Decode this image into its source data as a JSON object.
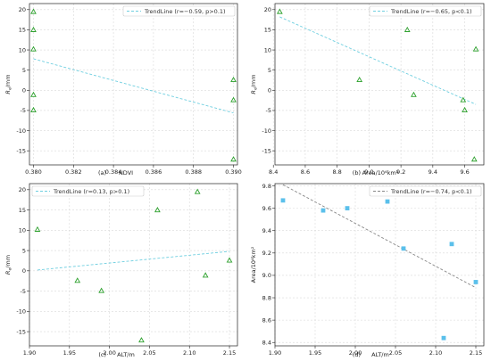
{
  "chart_data": [
    {
      "panel": "(a)",
      "type": "scatter",
      "xlabel": "NDVI",
      "ylabel": "R_e/mm",
      "xlim": [
        0.3798,
        0.3902
      ],
      "ylim": [
        -18.5,
        21.5
      ],
      "xticks": [
        "0.380",
        "0.382",
        "0.384",
        "0.386",
        "0.388",
        "0.390"
      ],
      "yticks": [
        "20",
        "15",
        "10",
        "5",
        "0",
        "-5",
        "-10",
        "-15"
      ],
      "xtick_values": [
        0.38,
        0.382,
        0.384,
        0.386,
        0.388,
        0.39
      ],
      "ytick_values": [
        20,
        15,
        10,
        5,
        0,
        -5,
        -10,
        -15
      ],
      "marker": "triangle-open",
      "marker_color": "#2ca02c",
      "points": [
        {
          "x": 0.38,
          "y": 19.5
        },
        {
          "x": 0.38,
          "y": 15.0
        },
        {
          "x": 0.38,
          "y": 10.2
        },
        {
          "x": 0.38,
          "y": -1.1
        },
        {
          "x": 0.38,
          "y": -4.9
        },
        {
          "x": 0.39,
          "y": 2.6
        },
        {
          "x": 0.39,
          "y": -2.4
        },
        {
          "x": 0.39,
          "y": -17.1
        }
      ],
      "trendline": {
        "x": [
          0.38,
          0.39
        ],
        "y": [
          7.8,
          -5.6
        ],
        "color": "#6fcfe0",
        "style": "dashed"
      },
      "legend": {
        "label": "TrendLine (r=−0.59, p>0.1)",
        "placement": "top-right"
      },
      "grid": true
    },
    {
      "panel": "(b)",
      "type": "scatter",
      "xlabel": "Area/10⁴km²",
      "ylabel": "R_e/mm",
      "xlim": [
        8.41,
        9.72
      ],
      "ylim": [
        -18.5,
        21.5
      ],
      "xticks": [
        "8.4",
        "8.6",
        "8.8",
        "9.0",
        "9.2",
        "9.4",
        "9.6"
      ],
      "yticks": [
        "20",
        "15",
        "10",
        "5",
        "0",
        "-5",
        "-10",
        "-15"
      ],
      "xtick_values": [
        8.4,
        8.6,
        8.8,
        9.0,
        9.2,
        9.4,
        9.6
      ],
      "ytick_values": [
        20,
        15,
        10,
        5,
        0,
        -5,
        -10,
        -15
      ],
      "marker": "triangle-open",
      "marker_color": "#2ca02c",
      "points": [
        {
          "x": 8.44,
          "y": 19.5
        },
        {
          "x": 8.94,
          "y": 2.6
        },
        {
          "x": 9.24,
          "y": 15.0
        },
        {
          "x": 9.28,
          "y": -1.1
        },
        {
          "x": 9.59,
          "y": -2.4
        },
        {
          "x": 9.6,
          "y": -4.9
        },
        {
          "x": 9.66,
          "y": -17.1
        },
        {
          "x": 9.67,
          "y": 10.2
        }
      ],
      "trendline": {
        "x": [
          8.44,
          9.67
        ],
        "y": [
          18.2,
          -3.5
        ],
        "color": "#6fcfe0",
        "style": "dashed"
      },
      "legend": {
        "label": "TrendLine (r=−0.65, p<0.1)",
        "placement": "top-right"
      },
      "grid": true
    },
    {
      "panel": "(c)",
      "type": "scatter",
      "xlabel": "ALT/m",
      "ylabel": "R_e/mm",
      "xlim": [
        1.9,
        2.16
      ],
      "ylim": [
        -18.5,
        21.5
      ],
      "xticks": [
        "1.90",
        "1.95",
        "2.00",
        "2.05",
        "2.10",
        "2.15"
      ],
      "yticks": [
        "20",
        "15",
        "10",
        "5",
        "0",
        "-5",
        "-10",
        "-15"
      ],
      "xtick_values": [
        1.9,
        1.95,
        2.0,
        2.05,
        2.1,
        2.15
      ],
      "ytick_values": [
        20,
        15,
        10,
        5,
        0,
        -5,
        -10,
        -15
      ],
      "marker": "triangle-open",
      "marker_color": "#2ca02c",
      "points": [
        {
          "x": 1.91,
          "y": 10.2
        },
        {
          "x": 1.96,
          "y": -2.4
        },
        {
          "x": 1.99,
          "y": -4.9
        },
        {
          "x": 2.04,
          "y": -17.1
        },
        {
          "x": 2.06,
          "y": 15.0
        },
        {
          "x": 2.11,
          "y": 19.5
        },
        {
          "x": 2.12,
          "y": -1.1
        },
        {
          "x": 2.15,
          "y": 2.6
        }
      ],
      "trendline": {
        "x": [
          1.91,
          2.15
        ],
        "y": [
          0.2,
          4.8
        ],
        "color": "#6fcfe0",
        "style": "dashed"
      },
      "legend": {
        "label": "TrendLine (r=0.13, p>0.1)",
        "placement": "top-left"
      },
      "grid": true
    },
    {
      "panel": "(d)",
      "type": "scatter",
      "xlabel": "ALT/m",
      "ylabel": "Area/10⁴km²",
      "xlim": [
        1.9,
        2.16
      ],
      "ylim": [
        8.37,
        9.82
      ],
      "xticks": [
        "1.90",
        "1.95",
        "2.00",
        "2.05",
        "2.10",
        "2.15"
      ],
      "yticks": [
        "9.8",
        "9.6",
        "9.4",
        "9.2",
        "9.0",
        "8.8",
        "8.6",
        "8.4"
      ],
      "xtick_values": [
        1.9,
        1.95,
        2.0,
        2.05,
        2.1,
        2.15
      ],
      "ytick_values": [
        9.8,
        9.6,
        9.4,
        9.2,
        9.0,
        8.8,
        8.6,
        8.4
      ],
      "marker": "square-filled",
      "marker_color": "#5bc0eb",
      "points": [
        {
          "x": 1.91,
          "y": 9.67
        },
        {
          "x": 1.96,
          "y": 9.58
        },
        {
          "x": 1.99,
          "y": 9.6
        },
        {
          "x": 2.04,
          "y": 9.66
        },
        {
          "x": 2.06,
          "y": 9.24
        },
        {
          "x": 2.11,
          "y": 8.44
        },
        {
          "x": 2.12,
          "y": 9.28
        },
        {
          "x": 2.15,
          "y": 8.94
        }
      ],
      "trendline": {
        "x": [
          1.91,
          2.15
        ],
        "y": [
          9.81,
          8.89
        ],
        "color": "#888888",
        "style": "dashed"
      },
      "legend": {
        "label": "TrendLine (r=−0.74, p<0.1)",
        "placement": "top-right"
      },
      "grid": true
    }
  ]
}
